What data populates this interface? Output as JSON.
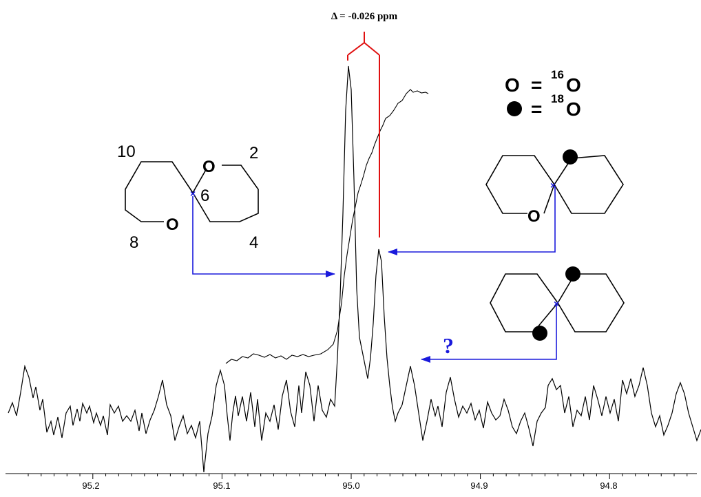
{
  "annotation": {
    "delta_text": "Δ = -0.026 ppm",
    "question_mark": "?"
  },
  "legend": {
    "o16_symbol": "O",
    "o16_equals": "=",
    "o16_mass": "16",
    "o16_element": "O",
    "o18_equals": "=",
    "o18_mass": "18",
    "o18_element": "O"
  },
  "molecule_left": {
    "atom_o_top": "O",
    "atom_o_bottom": "O",
    "label_10": "10",
    "label_2": "2",
    "label_6": "6",
    "label_8": "8",
    "label_4": "4"
  },
  "molecule_middle": {
    "atom_o": "O"
  },
  "axis": {
    "tick_labels": [
      "95.2",
      "95.1",
      "95.0",
      "94.9",
      "94.8"
    ]
  },
  "colors": {
    "spectrum": "#000000",
    "arrows": "#1a1adc",
    "delta_bracket": "#e01010",
    "question_mark": "#1a1adc"
  }
}
